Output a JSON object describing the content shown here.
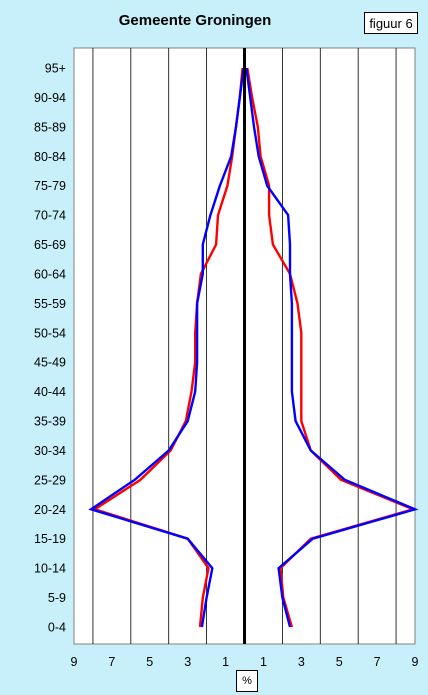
{
  "chart_data": {
    "type": "line",
    "title": "Gemeente Groningen",
    "figure_label": "figuur 6",
    "unit": "%",
    "categories": [
      "0-4",
      "5-9",
      "10-14",
      "15-19",
      "20-24",
      "25-29",
      "30-34",
      "35-39",
      "40-44",
      "45-49",
      "50-54",
      "55-59",
      "60-64",
      "65-69",
      "70-74",
      "75-79",
      "80-84",
      "85-89",
      "90-94",
      "95+"
    ],
    "x_tick_labels": [
      {
        "value": -9,
        "label": "9",
        "color": "#000000"
      },
      {
        "value": -7,
        "label": "7",
        "color": "#000000"
      },
      {
        "value": -5,
        "label": "5",
        "color": "#000000"
      },
      {
        "value": -3,
        "label": "3",
        "color": "#000000"
      },
      {
        "value": -1,
        "label": "1",
        "color": "#000000"
      },
      {
        "value": 1,
        "label": "1",
        "color": "#ff0000"
      },
      {
        "value": 3,
        "label": "3",
        "color": "#ff0000"
      },
      {
        "value": 5,
        "label": "5",
        "color": "#ff0000"
      },
      {
        "value": 7,
        "label": "7",
        "color": "#ff0000"
      },
      {
        "value": 9,
        "label": "9",
        "color": "#ff0000"
      }
    ],
    "xlim": [
      -9,
      9
    ],
    "grid": true,
    "series": [
      {
        "color": "#ff0000",
        "side": "left",
        "values": [
          2.35,
          2.2,
          1.9,
          3.0,
          7.9,
          5.5,
          3.9,
          3.1,
          2.8,
          2.6,
          2.6,
          2.5,
          2.3,
          1.5,
          1.4,
          0.9,
          0.65,
          0.45,
          0.25,
          0.1
        ]
      },
      {
        "color": "#0000ff",
        "side": "left",
        "values": [
          2.25,
          2.0,
          1.7,
          3.0,
          8.1,
          5.8,
          4.0,
          3.0,
          2.6,
          2.5,
          2.5,
          2.5,
          2.2,
          2.2,
          1.8,
          1.3,
          0.7,
          0.45,
          0.25,
          0.05
        ]
      },
      {
        "color": "#ff0000",
        "side": "right",
        "values": [
          2.5,
          2.05,
          1.9,
          3.5,
          8.9,
          5.1,
          3.5,
          3.0,
          3.0,
          3.0,
          3.0,
          2.8,
          2.4,
          1.5,
          1.3,
          1.3,
          0.85,
          0.7,
          0.4,
          0.15
        ]
      },
      {
        "color": "#0000ff",
        "side": "right",
        "values": [
          2.4,
          2.0,
          1.8,
          3.6,
          9.0,
          5.3,
          3.5,
          2.7,
          2.5,
          2.5,
          2.5,
          2.5,
          2.4,
          2.4,
          2.3,
          1.2,
          0.75,
          0.5,
          0.3,
          0.1
        ]
      }
    ]
  }
}
